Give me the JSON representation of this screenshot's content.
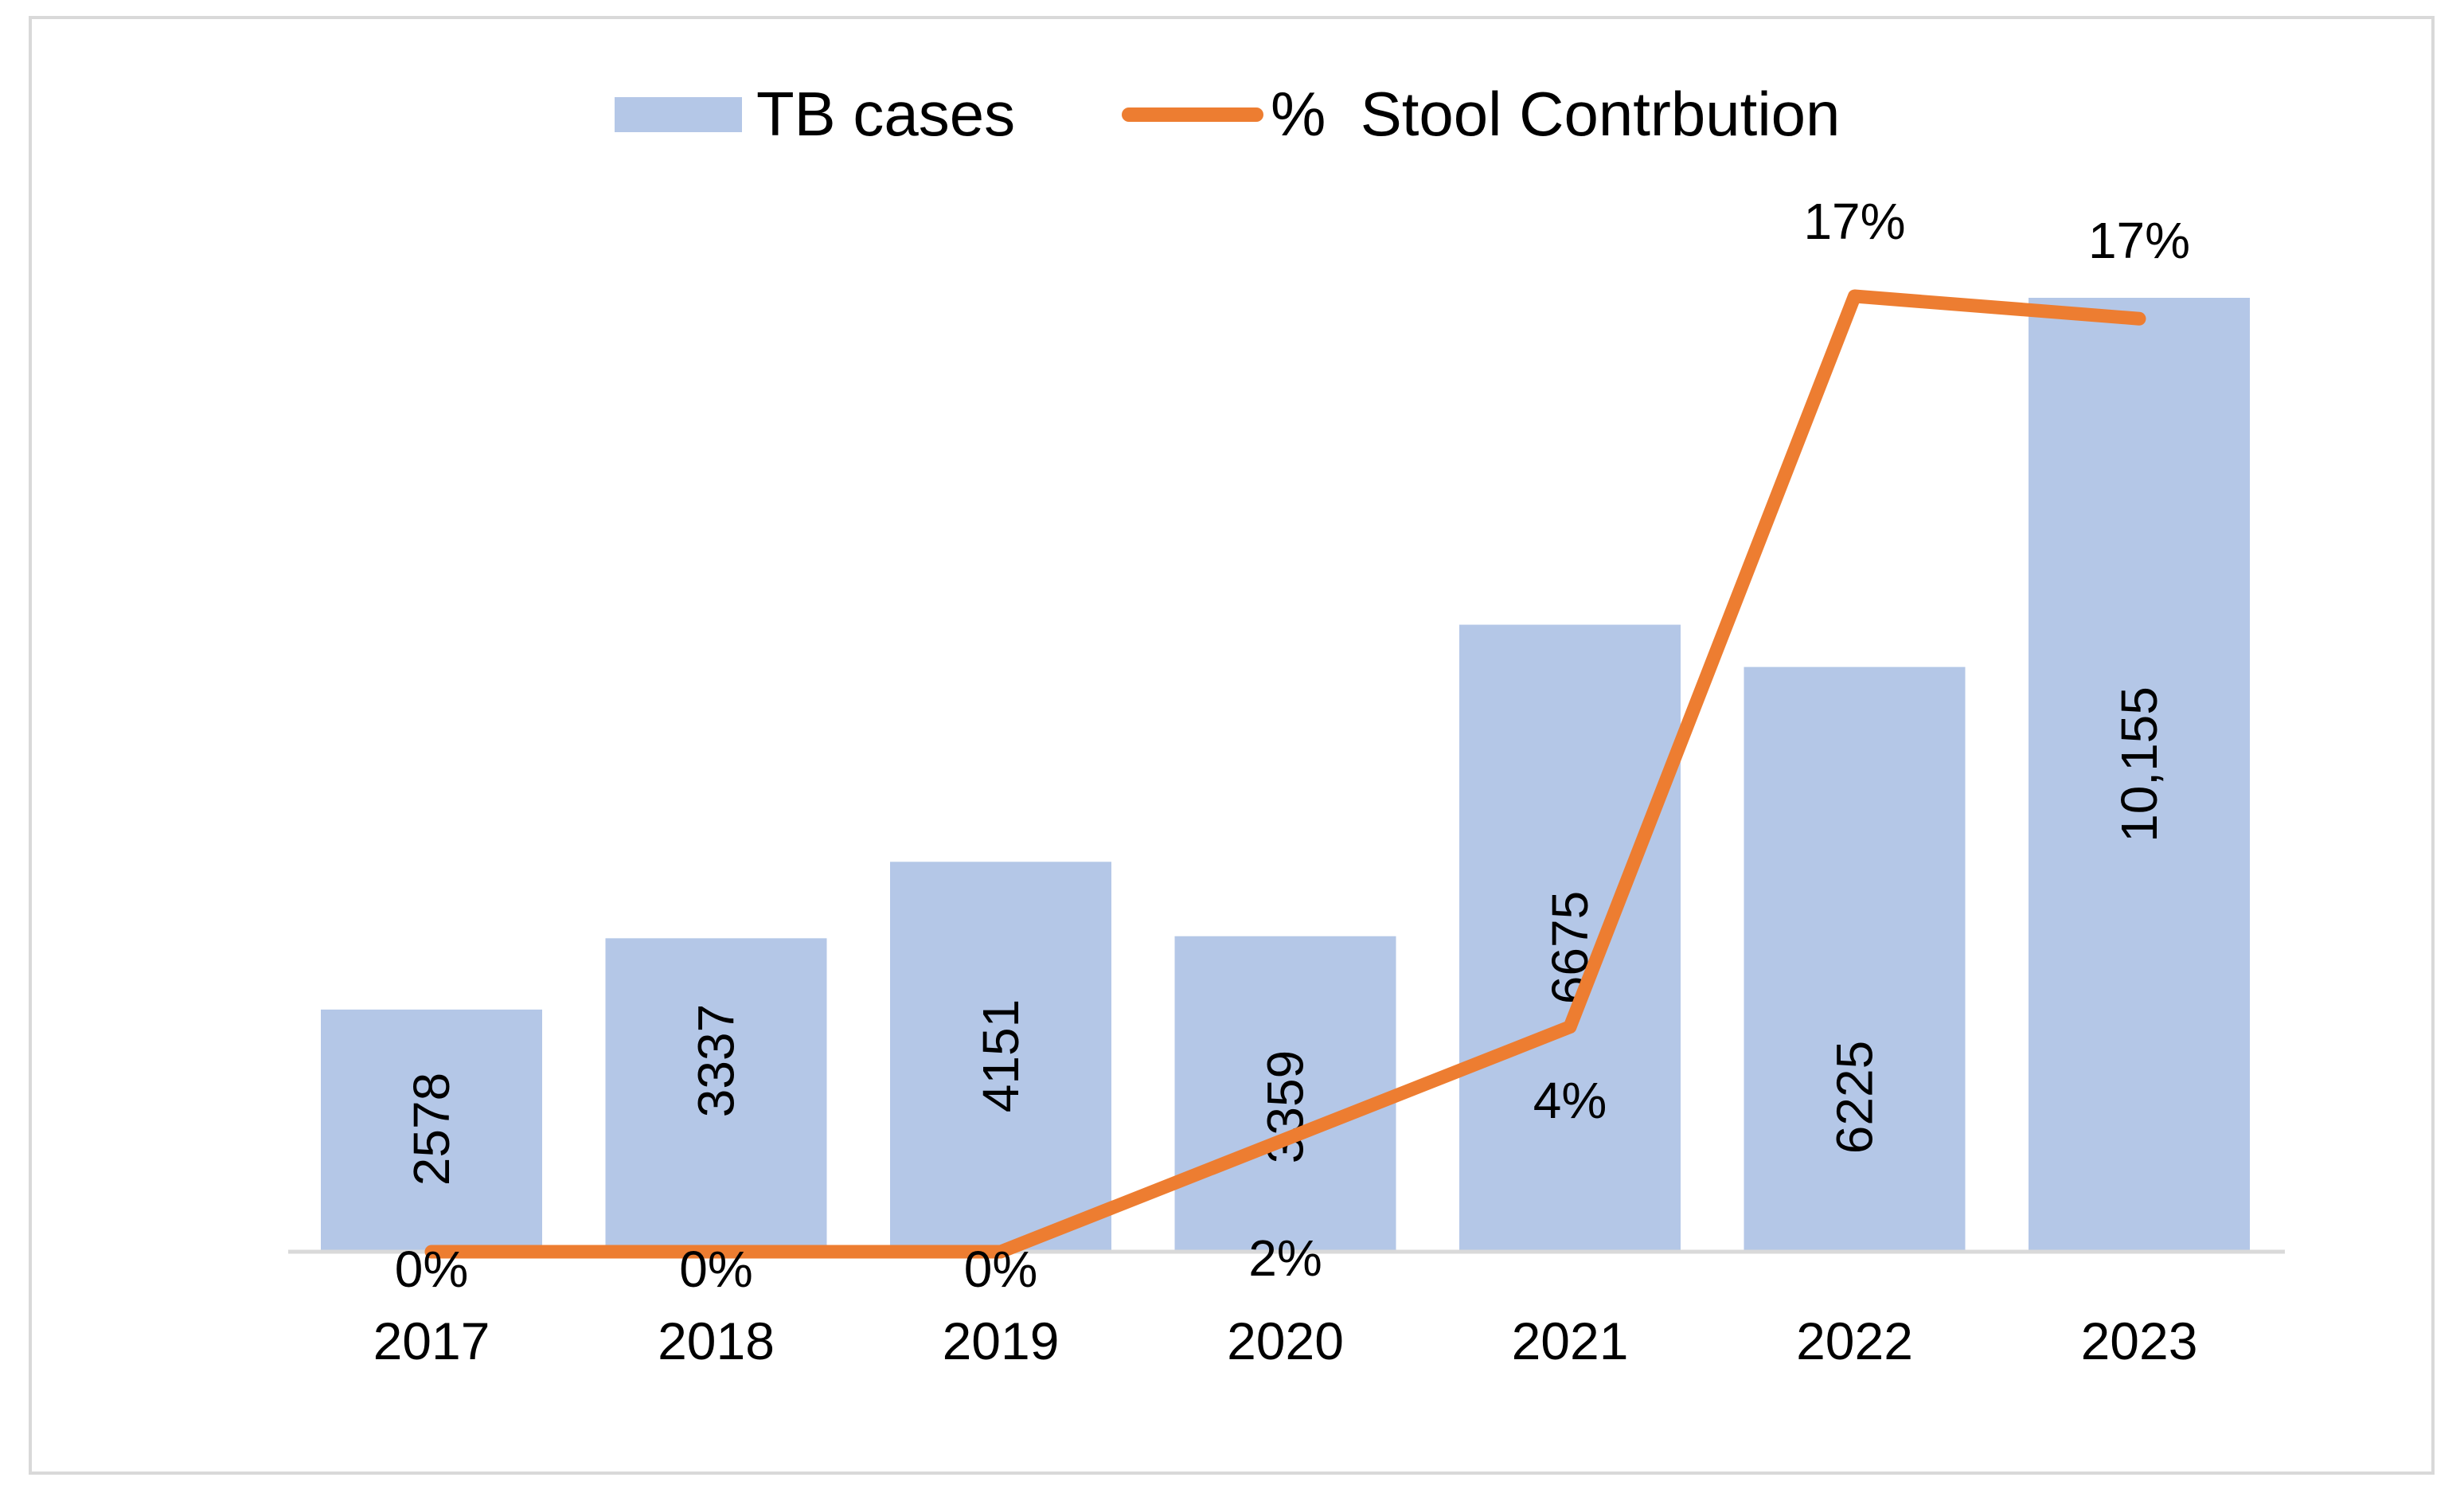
{
  "chart_data": {
    "type": "bar",
    "title": "",
    "xlabel": "",
    "ylabel": "",
    "categories": [
      "2017",
      "2018",
      "2019",
      "2020",
      "2021",
      "2022",
      "2023"
    ],
    "series": [
      {
        "name": "TB cases",
        "type": "bar",
        "color": "#b4c7e7",
        "values": [
          2578,
          3337,
          4151,
          3359,
          6675,
          6225,
          10155
        ],
        "labels": [
          "2578",
          "3337",
          "4151",
          "3359",
          "6675",
          "6225",
          "10,155"
        ]
      },
      {
        "name": "%  Stool Contrbution",
        "type": "line",
        "color": "#ed7d31",
        "values": [
          0,
          0,
          0,
          2,
          4,
          17,
          16.6
        ],
        "labels": [
          "0%",
          "0%",
          "0%",
          "2%",
          "4%",
          "17%",
          "17%"
        ]
      }
    ],
    "ylim": [
      0,
      10155
    ],
    "y2lim": [
      0,
      17
    ],
    "grid": false,
    "legend": "top-center"
  }
}
